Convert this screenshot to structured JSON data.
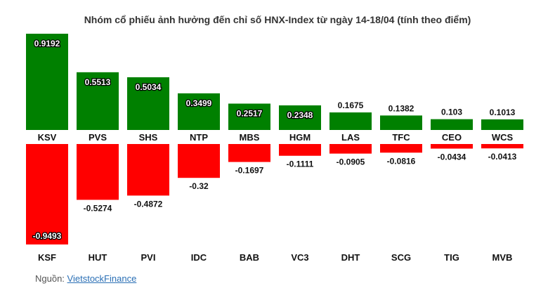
{
  "chart_data": {
    "type": "bar",
    "title": "Nhóm cổ phiếu ảnh hưởng đến chỉ số HNX-Index từ ngày 14-18/04 (tính theo điểm)",
    "series": [
      {
        "categories": [
          "KSV",
          "PVS",
          "SHS",
          "NTP",
          "MBS",
          "HGM",
          "LAS",
          "TFC",
          "CEO",
          "WCS"
        ],
        "values": [
          0.9192,
          0.5513,
          0.5034,
          0.3499,
          0.2517,
          0.2348,
          0.1675,
          0.1382,
          0.103,
          0.1013
        ],
        "labels": [
          "0.9192",
          "0.5513",
          "0.5034",
          "0.3499",
          "0.2517",
          "0.2348",
          "0.1675",
          "0.1382",
          "0.103",
          "0.1013"
        ],
        "color": "#008000"
      },
      {
        "categories": [
          "KSF",
          "HUT",
          "PVI",
          "IDC",
          "BAB",
          "VC3",
          "DHT",
          "SCG",
          "TIG",
          "MVB"
        ],
        "values": [
          -0.9493,
          -0.5274,
          -0.4872,
          -0.32,
          -0.1697,
          -0.1111,
          -0.0905,
          -0.0816,
          -0.0434,
          -0.0413
        ],
        "labels": [
          "-0.9493",
          "-0.5274",
          "-0.4872",
          "-0.32",
          "-0.1697",
          "-0.1111",
          "-0.0905",
          "-0.0816",
          "-0.0434",
          "-0.0413"
        ],
        "color": "#ff0000"
      }
    ]
  },
  "source": {
    "prefix": "Nguồn: ",
    "link_text": "VietstockFinance"
  }
}
